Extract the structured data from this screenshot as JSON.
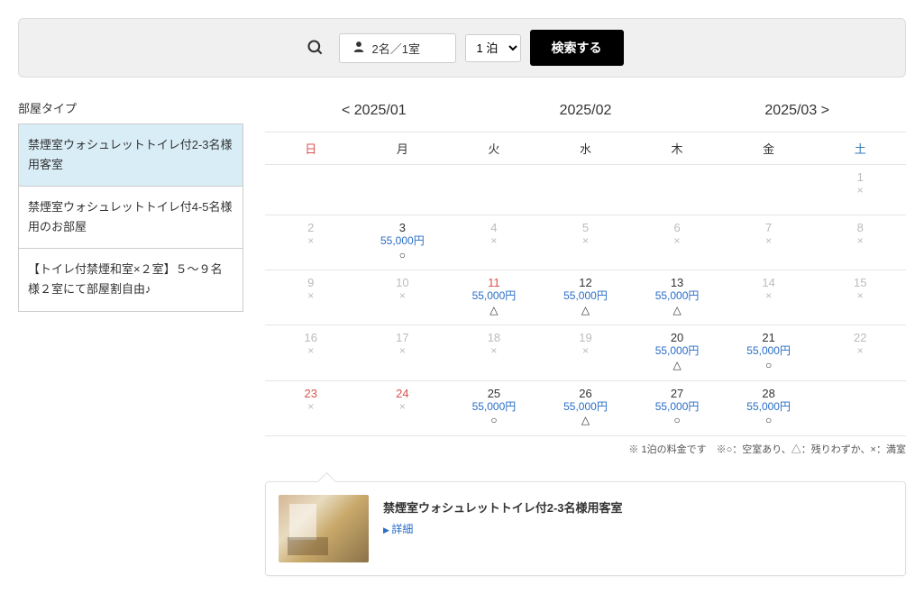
{
  "search": {
    "guests_label": "2名／1室",
    "nights_options": [
      "1 泊"
    ],
    "nights_selected": "1 泊",
    "button_label": "検索する"
  },
  "room_types": {
    "heading": "部屋タイプ",
    "items": [
      {
        "label": "禁煙室ウォシュレットトイレ付2-3名様用客室",
        "active": true
      },
      {
        "label": "禁煙室ウォシュレットトイレ付4-5名様用のお部屋",
        "active": false
      },
      {
        "label": "【トイレ付禁煙和室×２室】５～９名様２室にて部屋割自由♪",
        "active": false
      }
    ]
  },
  "months": {
    "prev": "< 2025/01",
    "current": "2025/02",
    "next": "2025/03 >"
  },
  "dow": [
    "日",
    "月",
    "火",
    "水",
    "木",
    "金",
    "土"
  ],
  "calendar_rows": [
    [
      {
        "day": "",
        "type": "blank"
      },
      {
        "day": "",
        "type": "blank"
      },
      {
        "day": "",
        "type": "blank"
      },
      {
        "day": "",
        "type": "blank"
      },
      {
        "day": "",
        "type": "blank"
      },
      {
        "day": "",
        "type": "blank"
      },
      {
        "day": "1",
        "type": "dim",
        "mark": "×"
      }
    ],
    [
      {
        "day": "2",
        "type": "dim",
        "mark": "×"
      },
      {
        "day": "3",
        "type": "avail",
        "price": "55,000円",
        "avail": "○"
      },
      {
        "day": "4",
        "type": "dim",
        "mark": "×"
      },
      {
        "day": "5",
        "type": "dim",
        "mark": "×"
      },
      {
        "day": "6",
        "type": "dim",
        "mark": "×"
      },
      {
        "day": "7",
        "type": "dim",
        "mark": "×"
      },
      {
        "day": "8",
        "type": "dim",
        "mark": "×"
      }
    ],
    [
      {
        "day": "9",
        "type": "dim",
        "mark": "×"
      },
      {
        "day": "10",
        "type": "dim",
        "mark": "×"
      },
      {
        "day": "11",
        "type": "avail",
        "price": "55,000円",
        "avail": "△",
        "holiday": true
      },
      {
        "day": "12",
        "type": "avail",
        "price": "55,000円",
        "avail": "△"
      },
      {
        "day": "13",
        "type": "avail",
        "price": "55,000円",
        "avail": "△"
      },
      {
        "day": "14",
        "type": "dim",
        "mark": "×"
      },
      {
        "day": "15",
        "type": "dim",
        "mark": "×"
      }
    ],
    [
      {
        "day": "16",
        "type": "dim",
        "mark": "×"
      },
      {
        "day": "17",
        "type": "dim",
        "mark": "×"
      },
      {
        "day": "18",
        "type": "dim",
        "mark": "×"
      },
      {
        "day": "19",
        "type": "dim",
        "mark": "×"
      },
      {
        "day": "20",
        "type": "avail",
        "price": "55,000円",
        "avail": "△"
      },
      {
        "day": "21",
        "type": "avail",
        "price": "55,000円",
        "avail": "○"
      },
      {
        "day": "22",
        "type": "dim",
        "mark": "×"
      }
    ],
    [
      {
        "day": "23",
        "type": "dim",
        "mark": "×",
        "holiday": true
      },
      {
        "day": "24",
        "type": "dim",
        "mark": "×",
        "holiday": true
      },
      {
        "day": "25",
        "type": "avail",
        "price": "55,000円",
        "avail": "○"
      },
      {
        "day": "26",
        "type": "avail",
        "price": "55,000円",
        "avail": "△"
      },
      {
        "day": "27",
        "type": "avail",
        "price": "55,000円",
        "avail": "○"
      },
      {
        "day": "28",
        "type": "avail",
        "price": "55,000円",
        "avail": "○"
      },
      {
        "day": "",
        "type": "blank"
      }
    ]
  ],
  "legend": "※ 1泊の料金です　※○：空室あり、△：残りわずか、×：満室",
  "detail": {
    "title": "禁煙室ウォシュレットトイレ付2-3名様用客室",
    "link": "詳細"
  }
}
